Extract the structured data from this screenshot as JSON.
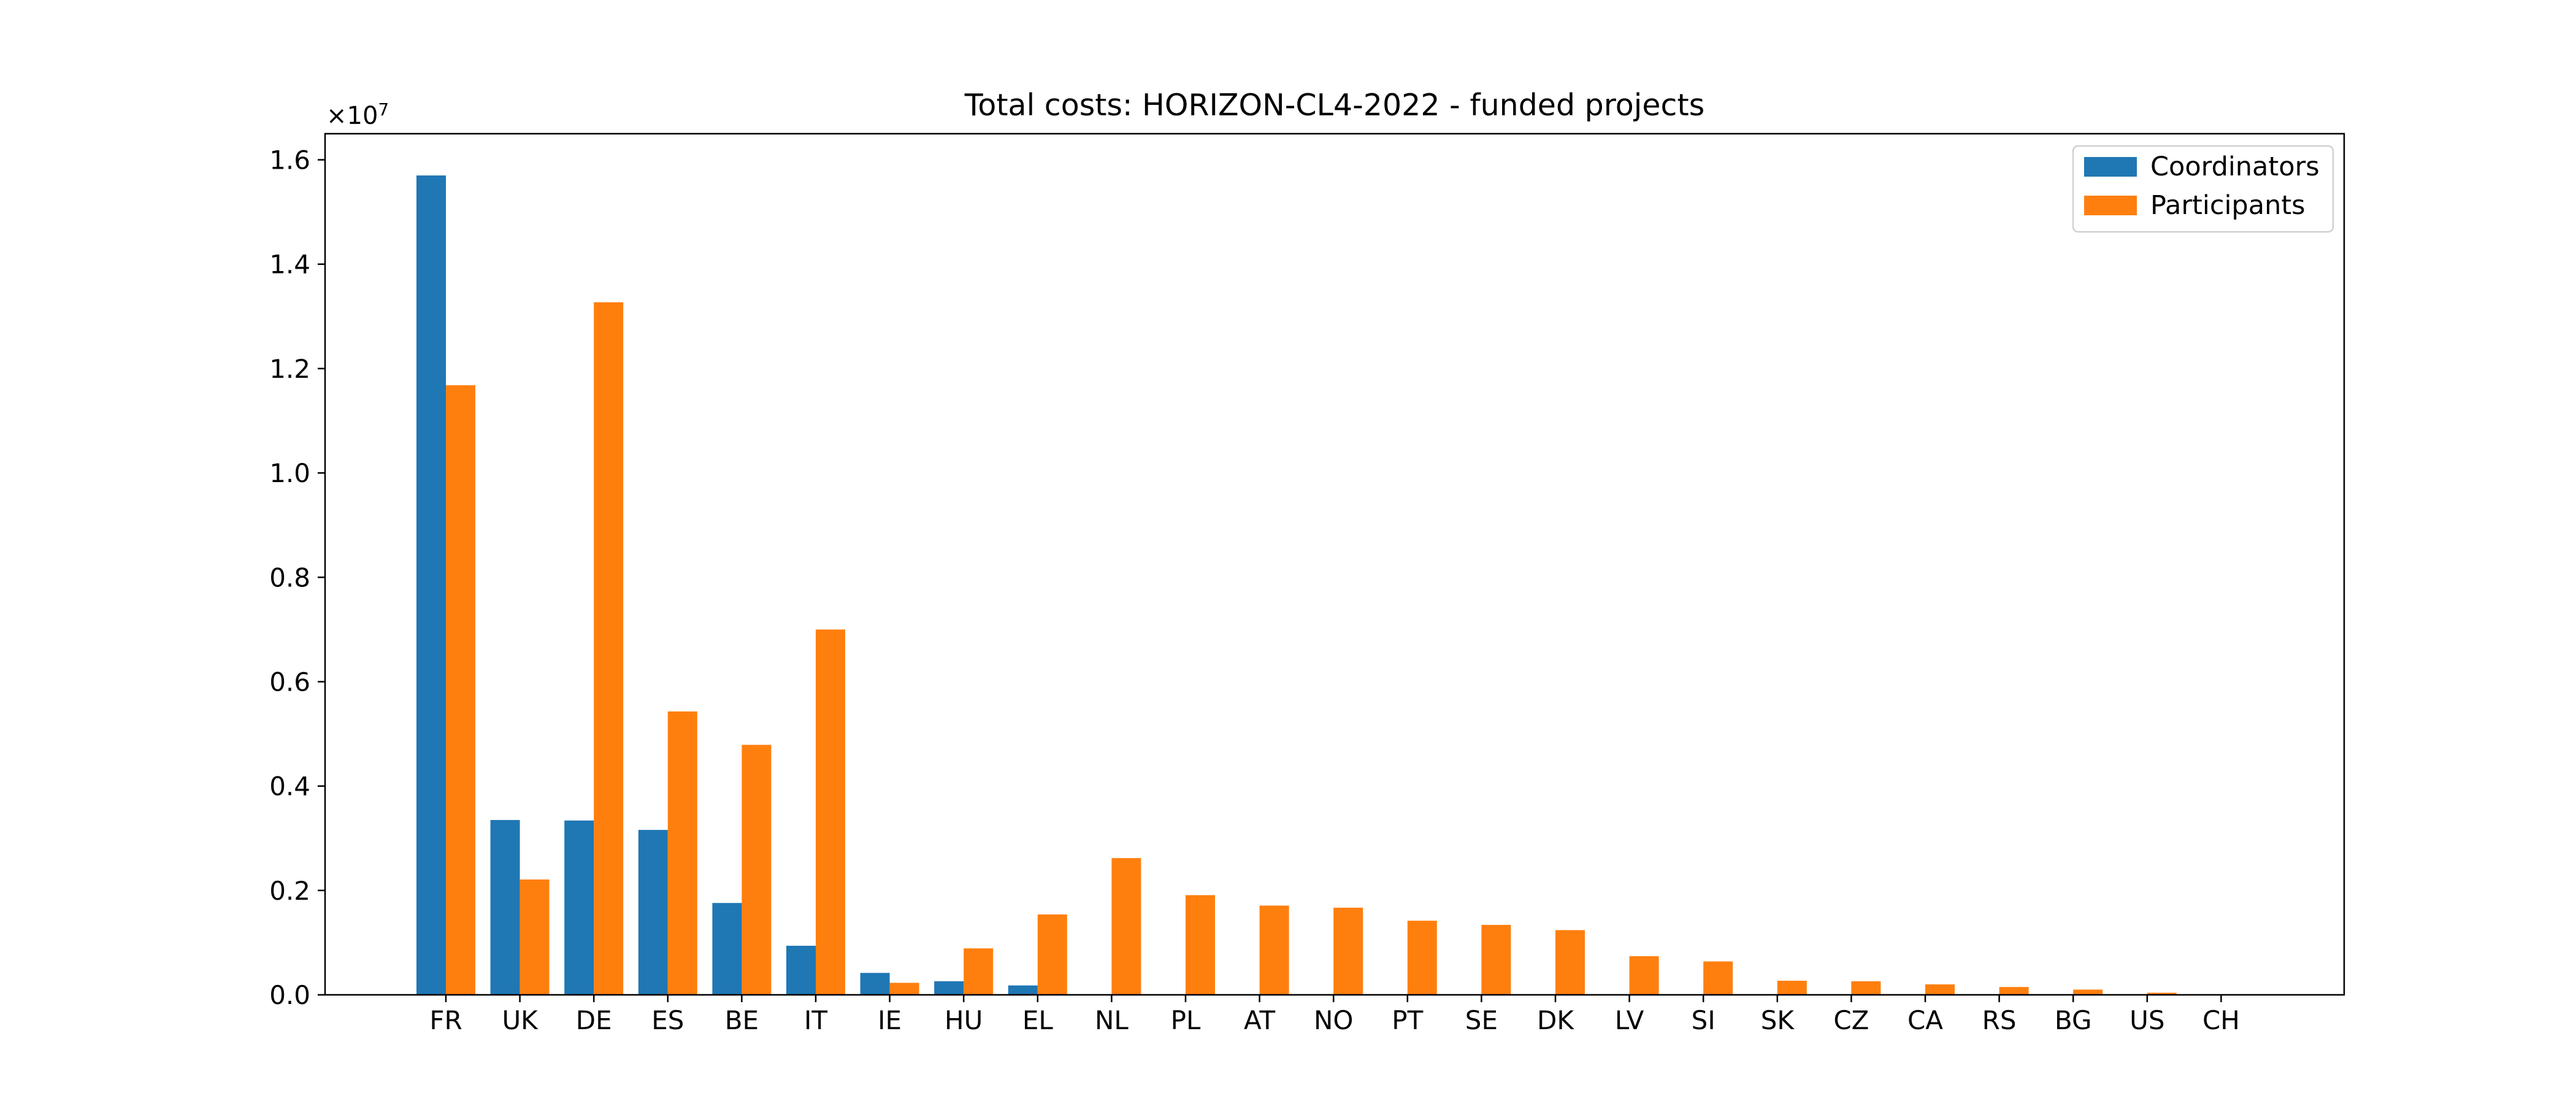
{
  "chart_data": {
    "type": "bar",
    "title": "Total costs: HORIZON-CL4-2022 - funded projects",
    "xlabel": "",
    "ylabel": "",
    "y_scale_label": "×10",
    "y_scale_exponent": "7",
    "ylim": [
      0,
      1.65
    ],
    "yticks": [
      0.0,
      0.2,
      0.4,
      0.6,
      0.8,
      1.0,
      1.2,
      1.4,
      1.6
    ],
    "ytick_labels": [
      "0.0",
      "0.2",
      "0.4",
      "0.6",
      "0.8",
      "1.0",
      "1.2",
      "1.4",
      "1.6"
    ],
    "legend_position": "top-right",
    "grid": false,
    "categories": [
      "FR",
      "UK",
      "DE",
      "ES",
      "BE",
      "IT",
      "IE",
      "HU",
      "EL",
      "NL",
      "PL",
      "AT",
      "NO",
      "PT",
      "SE",
      "DK",
      "LV",
      "SI",
      "SK",
      "CZ",
      "CA",
      "RS",
      "BG",
      "US",
      "CH"
    ],
    "series": [
      {
        "name": "Coordinators",
        "color": "#1f77b4",
        "values": [
          1.57,
          0.335,
          0.334,
          0.316,
          0.176,
          0.094,
          0.042,
          0.026,
          0.018,
          0,
          0,
          0,
          0,
          0,
          0,
          0,
          0,
          0,
          0,
          0,
          0,
          0,
          0,
          0,
          0
        ]
      },
      {
        "name": "Participants",
        "color": "#ff7f0e",
        "values": [
          1.168,
          0.221,
          1.327,
          0.543,
          0.479,
          0.7,
          0.023,
          0.089,
          0.154,
          0.262,
          0.191,
          0.171,
          0.167,
          0.142,
          0.134,
          0.124,
          0.074,
          0.064,
          0.027,
          0.026,
          0.02,
          0.015,
          0.01,
          0.004,
          0.001
        ]
      }
    ]
  }
}
